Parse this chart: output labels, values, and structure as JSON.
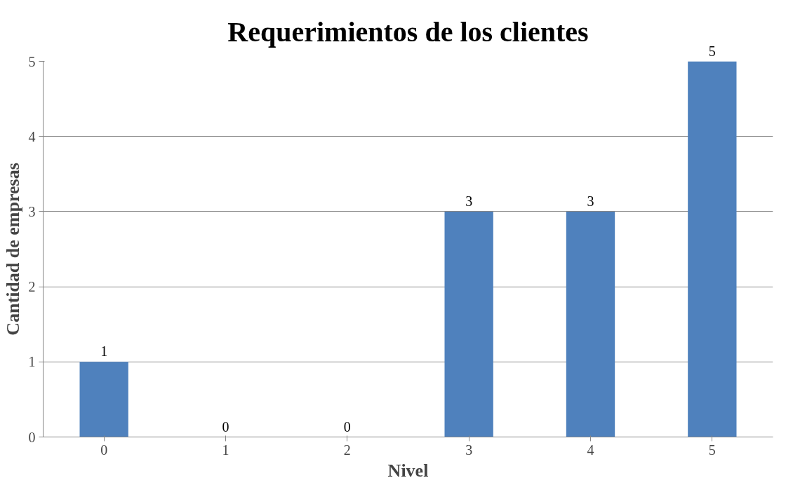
{
  "chart_data": {
    "type": "bar",
    "title": "Requerimientos de los clientes",
    "xlabel": "Nivel",
    "ylabel": "Cantidad de empresas",
    "categories": [
      "0",
      "1",
      "2",
      "3",
      "4",
      "5"
    ],
    "values": [
      1,
      0,
      0,
      3,
      3,
      5
    ],
    "color": "#4f81bd",
    "ylim": [
      0,
      5
    ],
    "yticks": [
      0,
      1,
      2,
      3,
      4,
      5
    ],
    "grid": "y",
    "data_labels": true
  }
}
